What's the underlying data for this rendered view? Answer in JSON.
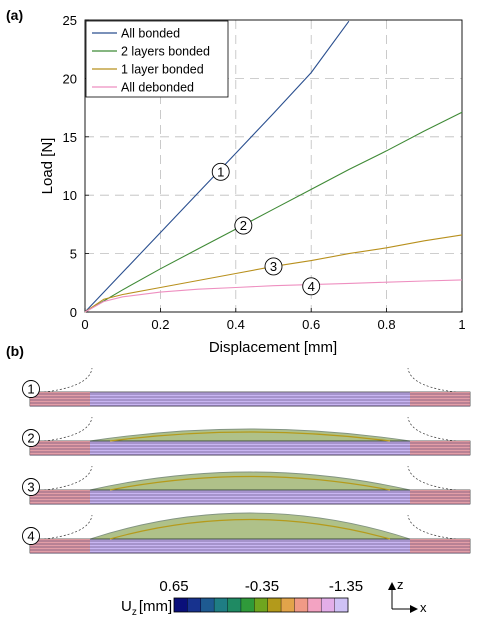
{
  "panels": {
    "a": "(a)",
    "b": "(b)"
  },
  "chart_data": {
    "type": "line",
    "xlabel": "Displacement [mm]",
    "ylabel": "Load [N]",
    "xlim": [
      0,
      1
    ],
    "ylim": [
      0,
      25
    ],
    "xticks": [
      "0",
      "0.2",
      "0.4",
      "0.6",
      "0.8",
      "1"
    ],
    "yticks": [
      "0",
      "5",
      "10",
      "15",
      "20",
      "25"
    ],
    "grid": true,
    "legend_position": "top-left",
    "series": [
      {
        "name": "All bonded",
        "color": "#2a4f8f",
        "x": [
          0,
          0.1,
          0.2,
          0.3,
          0.4,
          0.5,
          0.6,
          0.7
        ],
        "y": [
          0,
          3.4,
          6.8,
          10.2,
          13.6,
          17.0,
          20.5,
          24.9
        ]
      },
      {
        "name": "2 layers bonded",
        "color": "#3f8a36",
        "x": [
          0,
          0.1,
          0.2,
          0.3,
          0.4,
          0.5,
          0.6,
          0.7,
          0.8,
          0.9,
          1.0
        ],
        "y": [
          0,
          1.9,
          3.7,
          5.4,
          7.1,
          8.8,
          10.5,
          12.2,
          13.8,
          15.5,
          17.1
        ]
      },
      {
        "name": "1 layer bonded",
        "color": "#b8901d",
        "x": [
          0,
          0.05,
          0.1,
          0.2,
          0.3,
          0.4,
          0.5,
          0.6,
          0.7,
          0.8,
          0.9,
          1.0
        ],
        "y": [
          0,
          1.1,
          1.5,
          2.1,
          2.7,
          3.3,
          3.9,
          4.4,
          5.0,
          5.5,
          6.1,
          6.6
        ]
      },
      {
        "name": "All debonded",
        "color": "#ee8fc0",
        "x": [
          0,
          0.05,
          0.1,
          0.2,
          0.3,
          0.4,
          0.5,
          0.6,
          0.7,
          0.8,
          0.9,
          1.0
        ],
        "y": [
          0,
          0.9,
          1.3,
          1.7,
          1.95,
          2.1,
          2.25,
          2.35,
          2.45,
          2.55,
          2.65,
          2.75
        ]
      }
    ],
    "annotations": [
      {
        "label": "1",
        "x": 0.36,
        "y": 12.0
      },
      {
        "label": "2",
        "x": 0.42,
        "y": 7.4
      },
      {
        "label": "3",
        "x": 0.5,
        "y": 3.9
      },
      {
        "label": "4",
        "x": 0.6,
        "y": 2.2
      }
    ]
  },
  "figure_b": {
    "rows": [
      "1",
      "2",
      "3",
      "4"
    ],
    "colorbar": {
      "label": "U",
      "subscript": "z",
      "unit": "[mm]",
      "ticks": [
        "0.65",
        "-0.35",
        "-1.35"
      ],
      "colors": [
        "#0a0f7a",
        "#17328e",
        "#1e5a91",
        "#1f7d84",
        "#1f8a63",
        "#2f9a3a",
        "#6fa51f",
        "#b39a1b",
        "#e2a44a",
        "#f09a86",
        "#f3a3c2",
        "#e3aee9",
        "#cfc2f6"
      ]
    },
    "axes": {
      "z": "z",
      "x": "x"
    }
  }
}
